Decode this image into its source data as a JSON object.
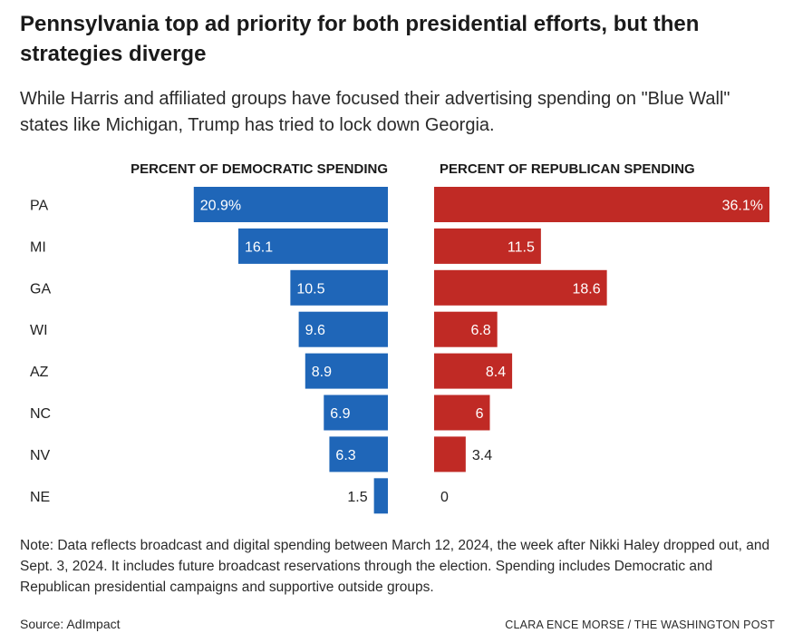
{
  "header": {
    "title": "Pennsylvania top ad priority for both presidential efforts, but then strategies diverge",
    "subtitle": "While Harris and affiliated groups have focused their advertising spending on \"Blue Wall\" states like Michigan, Trump has tried to lock down Georgia."
  },
  "chart_data": {
    "type": "bar",
    "categories": [
      "PA",
      "MI",
      "GA",
      "WI",
      "AZ",
      "NC",
      "NV",
      "NE"
    ],
    "series": [
      {
        "name": "PERCENT OF DEMOCRATIC SPENDING",
        "values": [
          20.9,
          16.1,
          10.5,
          9.6,
          8.9,
          6.9,
          6.3,
          1.5
        ],
        "labels": [
          "20.9%",
          "16.1",
          "10.5",
          "9.6",
          "8.9",
          "6.9",
          "6.3",
          "1.5"
        ],
        "color": "#1f66b8"
      },
      {
        "name": "PERCENT OF REPUBLICAN SPENDING",
        "values": [
          36.1,
          11.5,
          18.6,
          6.8,
          8.4,
          6,
          3.4,
          0
        ],
        "labels": [
          "36.1%",
          "11.5",
          "18.6",
          "6.8",
          "8.4",
          "6",
          "3.4",
          "0"
        ],
        "color": "#c02a25"
      }
    ],
    "orientation": "horizontal, diverging (Democratic extends left, Republican extends right)"
  },
  "footer": {
    "note": "Note: Data reflects broadcast and digital spending between March 12, 2024, the week after Nikki Haley dropped out, and Sept. 3, 2024. It includes future broadcast reservations through the election. Spending includes Democratic and Republican presidential campaigns and supportive outside groups.",
    "source": "Source: AdImpact",
    "credit": "CLARA ENCE MORSE / THE WASHINGTON POST"
  }
}
